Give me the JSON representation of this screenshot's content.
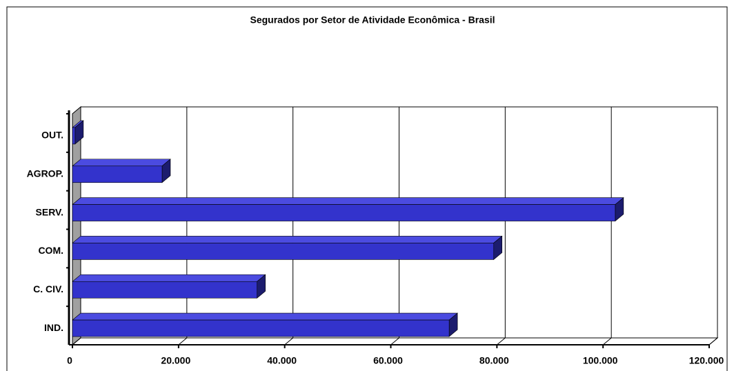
{
  "chart_data": {
    "type": "bar3d_horizontal",
    "title": "Segurados por Setor de Atividade Econômica - Brasil",
    "categories": [
      "OUT.",
      "AGROP.",
      "SERV.",
      "COM.",
      "C. CIV.",
      "IND."
    ],
    "values": [
      500,
      16900,
      102300,
      79400,
      34800,
      71000
    ],
    "color": "#3333cc",
    "xlim": [
      0,
      120000
    ],
    "xticks": [
      0,
      {
        "value": 20000,
        "label": "20.000"
      },
      {
        "value": 40000,
        "label": "40.000"
      },
      {
        "value": 60000,
        "label": "60.000"
      },
      {
        "value": 80000,
        "label": "80.000"
      },
      {
        "value": 100000,
        "label": "100.000"
      },
      {
        "value": 120000,
        "label": "120.000"
      }
    ],
    "grid": true
  }
}
